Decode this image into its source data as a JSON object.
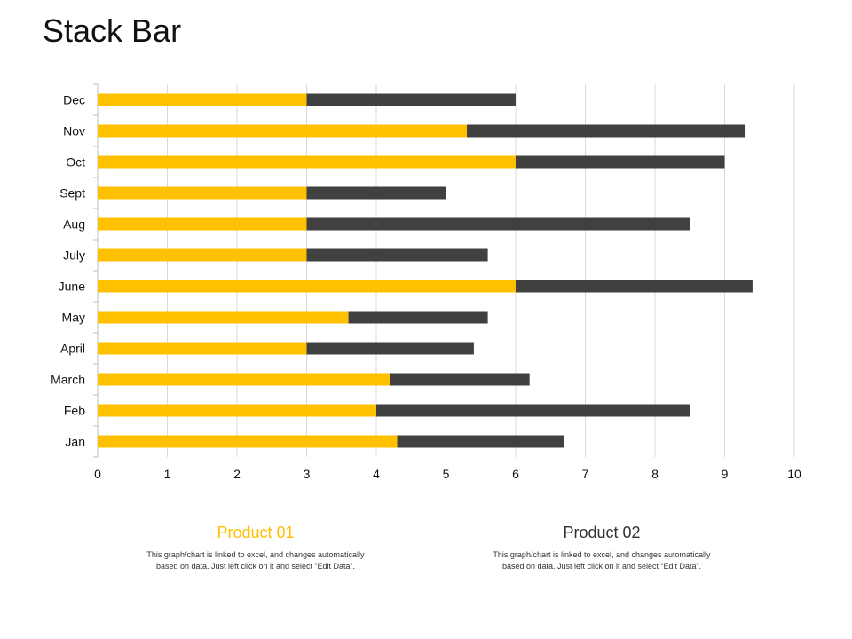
{
  "page": {
    "title": "Stack Bar"
  },
  "chart_data": {
    "type": "bar",
    "orientation": "horizontal",
    "stacked": true,
    "categories": [
      "Jan",
      "Feb",
      "March",
      "April",
      "May",
      "June",
      "July",
      "Aug",
      "Sept",
      "Oct",
      "Nov",
      "Dec"
    ],
    "series": [
      {
        "name": "Product 01",
        "color": "#FFC000",
        "values": [
          4.3,
          4.0,
          4.2,
          3.0,
          3.6,
          6.0,
          3.0,
          3.0,
          3.0,
          6.0,
          5.3,
          3.0
        ]
      },
      {
        "name": "Product 02",
        "color": "#404040",
        "values": [
          2.4,
          4.5,
          2.0,
          2.4,
          2.0,
          3.4,
          2.6,
          5.5,
          2.0,
          3.0,
          4.0,
          3.0
        ]
      }
    ],
    "x_ticks": [
      "0",
      "1",
      "2",
      "3",
      "4",
      "5",
      "6",
      "7",
      "8",
      "9",
      "10"
    ],
    "xlim": [
      0,
      10
    ],
    "grid": true,
    "legend_position": "bottom"
  },
  "legend": [
    {
      "title": "Product 01",
      "color": "#FFC000",
      "desc": "This graph/chart is linked to excel, and changes automatically based on data. Just left click on it and select “Edit Data”."
    },
    {
      "title": "Product 02",
      "color": "#404040",
      "desc": "This graph/chart is linked to excel, and changes automatically based on data. Just left click on it and select “Edit Data”."
    }
  ]
}
